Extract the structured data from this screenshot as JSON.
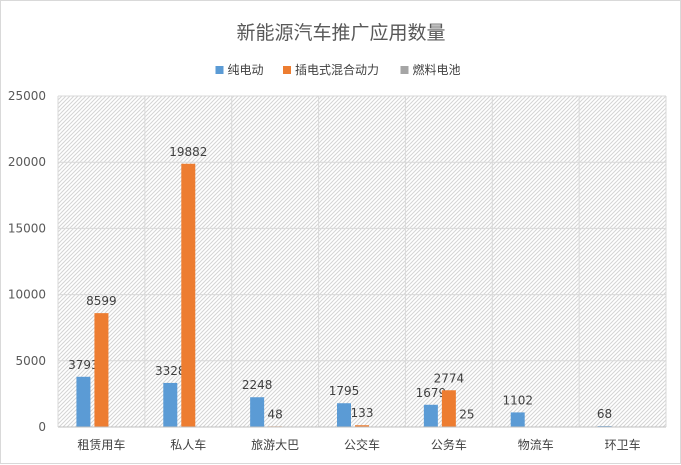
{
  "chart_data": {
    "type": "bar",
    "title": "新能源汽车推广应用数量",
    "xlabel": "",
    "ylabel": "",
    "categories": [
      "租赁用车",
      "私人车",
      "旅游大巴",
      "公交车",
      "公务车",
      "物流车",
      "环卫车"
    ],
    "series": [
      {
        "name": "纯电动",
        "values": [
          3793,
          3328,
          2248,
          1795,
          1679,
          1102,
          68
        ],
        "color": "#5b9bd5"
      },
      {
        "name": "插电式混合动力",
        "values": [
          8599,
          19882,
          48,
          133,
          2774,
          null,
          null
        ],
        "color": "#ed7d31"
      },
      {
        "name": "燃料电池",
        "values": [
          null,
          null,
          null,
          null,
          25,
          null,
          null
        ],
        "color": "#a5a5a5"
      }
    ],
    "ylim": [
      0,
      25000
    ],
    "yticks": [
      0,
      5000,
      10000,
      15000,
      20000,
      25000
    ],
    "grid": true,
    "legend_position": "top"
  }
}
